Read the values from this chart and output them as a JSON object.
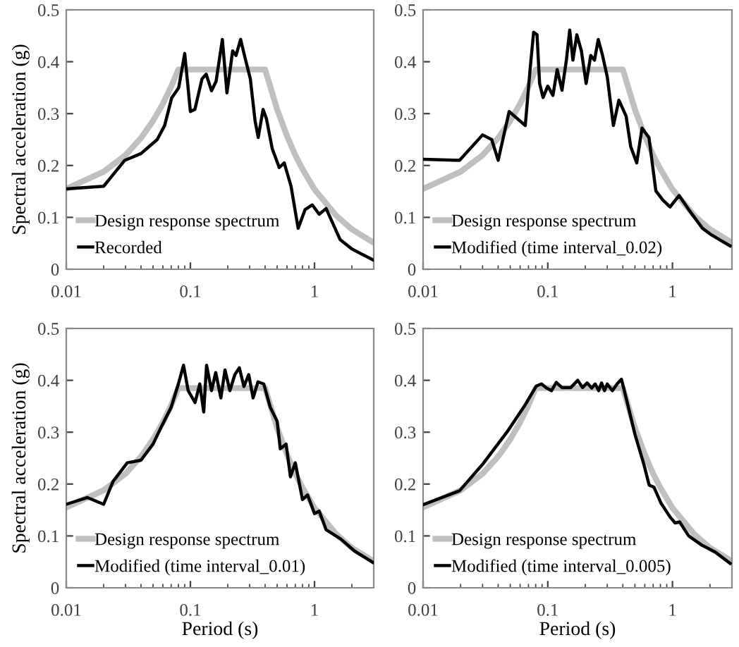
{
  "chart_data": [
    {
      "type": "line",
      "ylabel": "Spectral acceleration (g)",
      "log": "x",
      "legend": "bottom left",
      "xlim": [
        0.01,
        3
      ],
      "ylim": [
        0,
        0.5
      ],
      "xticks": [
        0.01,
        0.1,
        1
      ],
      "yticks": [
        0,
        0.1,
        0.2,
        0.3,
        0.4,
        0.5
      ],
      "series": [
        {
          "name": "Design response spectrum",
          "color": "#bfbfbf",
          "x": [
            0.01,
            0.02,
            0.03,
            0.04,
            0.05,
            0.06,
            0.07,
            0.08,
            0.4,
            0.5,
            0.6,
            0.7,
            0.8,
            1,
            1.5,
            2,
            3
          ],
          "values": [
            0.155,
            0.188,
            0.22,
            0.253,
            0.286,
            0.319,
            0.352,
            0.385,
            0.385,
            0.308,
            0.257,
            0.22,
            0.193,
            0.154,
            0.103,
            0.077,
            0.051
          ]
        },
        {
          "name": "Recorded",
          "color": "#000000",
          "x": [
            0.01,
            0.02,
            0.0296,
            0.04,
            0.054,
            0.062,
            0.0706,
            0.0805,
            0.09,
            0.1,
            0.1087,
            0.124,
            0.134,
            0.148,
            0.161,
            0.181,
            0.197,
            0.219,
            0.233,
            0.254,
            0.276,
            0.304,
            0.332,
            0.352,
            0.385,
            0.41,
            0.457,
            0.52,
            0.57,
            0.647,
            0.738,
            0.84,
            0.96,
            1.09,
            1.24,
            1.61,
            2.0,
            2.97
          ],
          "values": [
            0.155,
            0.16,
            0.21,
            0.223,
            0.25,
            0.277,
            0.33,
            0.35,
            0.416,
            0.304,
            0.308,
            0.367,
            0.376,
            0.344,
            0.362,
            0.443,
            0.34,
            0.421,
            0.412,
            0.443,
            0.407,
            0.367,
            0.286,
            0.254,
            0.308,
            0.29,
            0.232,
            0.196,
            0.205,
            0.16,
            0.079,
            0.115,
            0.124,
            0.106,
            0.117,
            0.057,
            0.039,
            0.018
          ]
        }
      ]
    },
    {
      "type": "line",
      "log": "x",
      "legend": "bottom left",
      "xlim": [
        0.01,
        3
      ],
      "ylim": [
        0,
        0.5
      ],
      "xticks": [
        0.01,
        0.1,
        1
      ],
      "yticks": [
        0,
        0.1,
        0.2,
        0.3,
        0.4,
        0.5
      ],
      "series": [
        {
          "name": "Design response spectrum",
          "color": "#bfbfbf",
          "x": [
            0.01,
            0.02,
            0.03,
            0.04,
            0.05,
            0.06,
            0.07,
            0.08,
            0.4,
            0.5,
            0.6,
            0.7,
            0.8,
            1,
            1.5,
            2,
            3
          ],
          "values": [
            0.155,
            0.188,
            0.22,
            0.253,
            0.286,
            0.319,
            0.352,
            0.385,
            0.385,
            0.308,
            0.257,
            0.22,
            0.193,
            0.154,
            0.103,
            0.077,
            0.051
          ]
        },
        {
          "name": "Modified (time interval_0.02)",
          "color": "#000000",
          "x": [
            0.01,
            0.0196,
            0.03,
            0.0355,
            0.04,
            0.049,
            0.066,
            0.0718,
            0.077,
            0.082,
            0.086,
            0.0917,
            0.1,
            0.11,
            0.119,
            0.13,
            0.141,
            0.15,
            0.159,
            0.171,
            0.186,
            0.203,
            0.221,
            0.237,
            0.254,
            0.275,
            0.3,
            0.336,
            0.372,
            0.425,
            0.463,
            0.517,
            0.57,
            0.648,
            0.736,
            0.84,
            0.957,
            1.13,
            1.35,
            1.74,
            2.06,
            2.9
          ],
          "values": [
            0.212,
            0.21,
            0.259,
            0.25,
            0.21,
            0.304,
            0.277,
            0.38,
            0.457,
            0.452,
            0.358,
            0.331,
            0.353,
            0.335,
            0.385,
            0.345,
            0.403,
            0.461,
            0.403,
            0.452,
            0.421,
            0.358,
            0.412,
            0.403,
            0.443,
            0.412,
            0.371,
            0.277,
            0.326,
            0.295,
            0.236,
            0.205,
            0.272,
            0.254,
            0.151,
            0.133,
            0.12,
            0.142,
            0.115,
            0.079,
            0.066,
            0.045
          ]
        }
      ]
    },
    {
      "type": "line",
      "xlabel": "Period (s)",
      "ylabel": "Spectral acceleration (g)",
      "log": "x",
      "legend": "bottom left",
      "xlim": [
        0.01,
        3
      ],
      "ylim": [
        0,
        0.5
      ],
      "xticks": [
        0.01,
        0.1,
        1
      ],
      "yticks": [
        0,
        0.1,
        0.2,
        0.3,
        0.4,
        0.5
      ],
      "series": [
        {
          "name": "Design response spectrum",
          "color": "#bfbfbf",
          "x": [
            0.01,
            0.02,
            0.03,
            0.04,
            0.05,
            0.06,
            0.07,
            0.08,
            0.4,
            0.5,
            0.6,
            0.7,
            0.8,
            1,
            1.5,
            2,
            3
          ],
          "values": [
            0.155,
            0.188,
            0.22,
            0.253,
            0.286,
            0.319,
            0.352,
            0.385,
            0.385,
            0.308,
            0.257,
            0.22,
            0.193,
            0.154,
            0.103,
            0.077,
            0.051
          ]
        },
        {
          "name": "Modified (time interval_0.01)",
          "color": "#000000",
          "x": [
            0.01,
            0.0148,
            0.02,
            0.0238,
            0.031,
            0.04,
            0.05,
            0.059,
            0.07,
            0.08,
            0.088,
            0.096,
            0.109,
            0.119,
            0.128,
            0.135,
            0.148,
            0.16,
            0.176,
            0.19,
            0.208,
            0.228,
            0.248,
            0.27,
            0.295,
            0.32,
            0.35,
            0.39,
            0.44,
            0.5,
            0.53,
            0.59,
            0.64,
            0.7,
            0.8,
            0.88,
            1.0,
            1.09,
            1.24,
            1.63,
            2.1,
            2.95
          ],
          "values": [
            0.161,
            0.174,
            0.161,
            0.205,
            0.241,
            0.246,
            0.277,
            0.313,
            0.348,
            0.393,
            0.429,
            0.38,
            0.357,
            0.393,
            0.339,
            0.429,
            0.38,
            0.415,
            0.366,
            0.42,
            0.38,
            0.411,
            0.424,
            0.388,
            0.411,
            0.366,
            0.397,
            0.393,
            0.348,
            0.321,
            0.268,
            0.277,
            0.214,
            0.241,
            0.17,
            0.179,
            0.143,
            0.148,
            0.112,
            0.094,
            0.071,
            0.049
          ]
        }
      ]
    },
    {
      "type": "line",
      "xlabel": "Period (s)",
      "log": "x",
      "legend": "bottom left",
      "xlim": [
        0.01,
        3
      ],
      "ylim": [
        0,
        0.5
      ],
      "xticks": [
        0.01,
        0.1,
        1
      ],
      "yticks": [
        0,
        0.1,
        0.2,
        0.3,
        0.4,
        0.5
      ],
      "series": [
        {
          "name": "Design response spectrum",
          "color": "#bfbfbf",
          "x": [
            0.01,
            0.02,
            0.03,
            0.04,
            0.05,
            0.06,
            0.07,
            0.08,
            0.4,
            0.5,
            0.6,
            0.7,
            0.8,
            1,
            1.5,
            2,
            3
          ],
          "values": [
            0.155,
            0.188,
            0.22,
            0.253,
            0.286,
            0.319,
            0.352,
            0.385,
            0.385,
            0.308,
            0.257,
            0.22,
            0.193,
            0.154,
            0.103,
            0.077,
            0.051
          ]
        },
        {
          "name": "Modified (time interval_0.005)",
          "color": "#000000",
          "x": [
            0.01,
            0.0196,
            0.03,
            0.047,
            0.066,
            0.081,
            0.089,
            0.098,
            0.107,
            0.117,
            0.13,
            0.153,
            0.174,
            0.19,
            0.207,
            0.225,
            0.24,
            0.256,
            0.27,
            0.285,
            0.3,
            0.33,
            0.36,
            0.39,
            0.42,
            0.5,
            0.59,
            0.65,
            0.71,
            0.81,
            0.96,
            1.05,
            1.14,
            1.35,
            1.7,
            2.2,
            2.9
          ],
          "values": [
            0.16,
            0.187,
            0.238,
            0.3,
            0.353,
            0.389,
            0.393,
            0.385,
            0.38,
            0.396,
            0.386,
            0.386,
            0.4,
            0.386,
            0.395,
            0.385,
            0.393,
            0.38,
            0.395,
            0.38,
            0.393,
            0.38,
            0.393,
            0.402,
            0.371,
            0.296,
            0.238,
            0.198,
            0.194,
            0.163,
            0.136,
            0.125,
            0.127,
            0.1,
            0.083,
            0.069,
            0.047
          ]
        }
      ]
    }
  ]
}
